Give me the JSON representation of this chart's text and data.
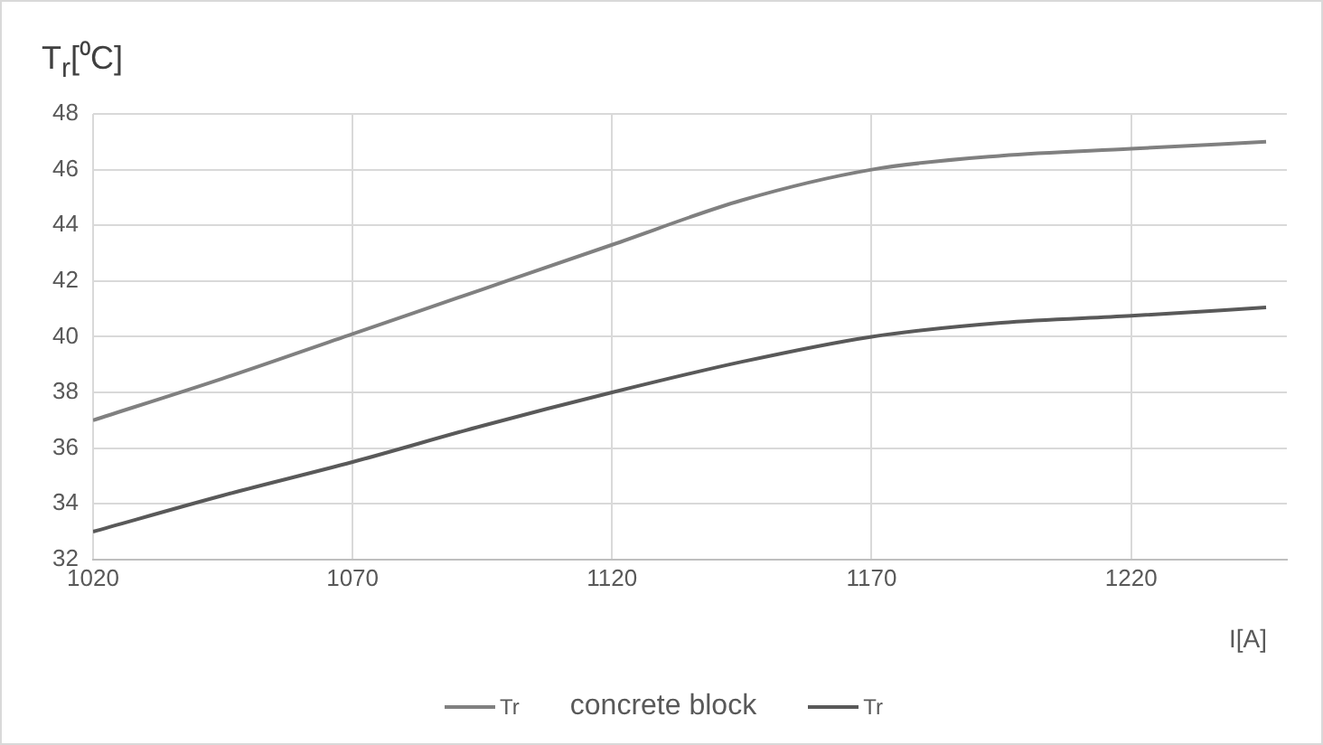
{
  "chart_data": {
    "type": "line",
    "ylabel": "T$_{r}$[⁰C]",
    "xlabel": "I[A]",
    "annotations": [
      "concrete block"
    ],
    "x": [
      1020,
      1045,
      1070,
      1095,
      1120,
      1145,
      1170,
      1195,
      1220,
      1246
    ],
    "series": [
      {
        "name": "Tr",
        "color": "#808080",
        "values": [
          37,
          38.5,
          40.1,
          41.7,
          43.3,
          44.9,
          46,
          46.5,
          46.75,
          47
        ]
      },
      {
        "name": "Tr",
        "color": "#595959",
        "values": [
          33,
          34.3,
          35.5,
          36.8,
          38,
          39.1,
          40,
          40.5,
          40.75,
          41.05
        ]
      }
    ],
    "xlim": [
      1020,
      1250
    ],
    "xticks": [
      1020,
      1070,
      1120,
      1170,
      1220
    ],
    "ylim": [
      32,
      48
    ],
    "yticks": [
      32,
      34,
      36,
      38,
      40,
      42,
      44,
      46,
      48
    ],
    "grid": true,
    "legend": "bottom",
    "marker": "none",
    "line_style": "solid"
  }
}
